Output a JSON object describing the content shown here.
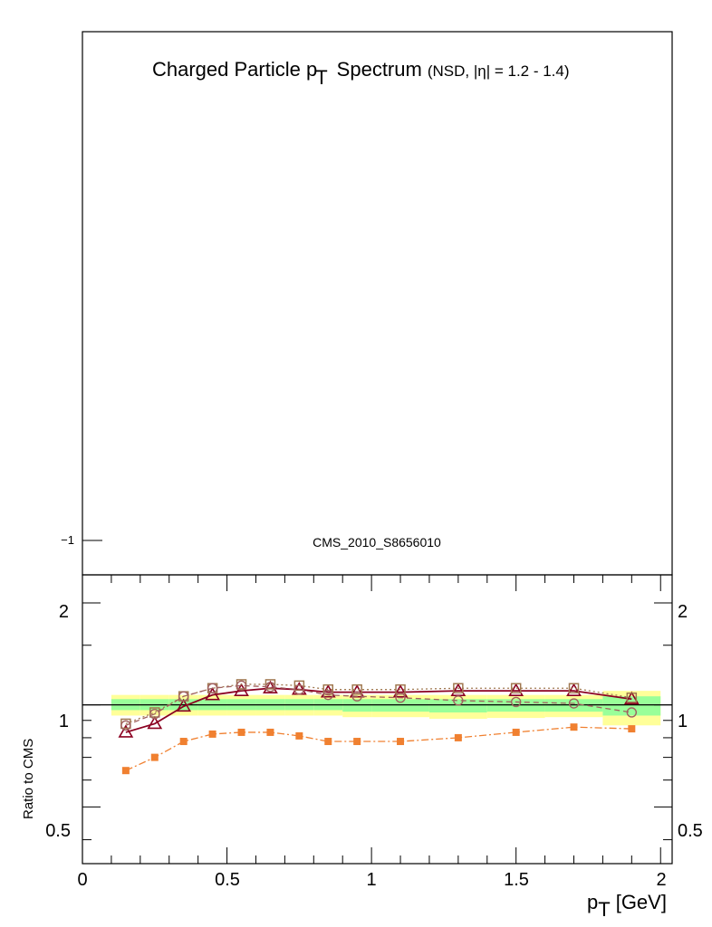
{
  "chart_data": [
    {
      "type": "line",
      "panel": "main",
      "title": "Charged Particle p",
      "title_sub": "T",
      "title_word": "Spectrum",
      "title_extra": "(NSD, |η| = 1.2 - 1.4)",
      "annotation": "CMS_2010_S8656010",
      "ytick_labels": [
        "−1"
      ],
      "series": []
    },
    {
      "type": "line",
      "panel": "ratio",
      "xlabel": "p",
      "xlabel_sub": "T",
      "xlabel_unit": "[GeV]",
      "ylabel": "Ratio to CMS",
      "xlim": [
        0,
        2.04
      ],
      "ylim": [
        0.34,
        2.42
      ],
      "reference_line": 1,
      "xtick_labels": [
        "0",
        "0.5",
        "1",
        "1.5",
        "2"
      ],
      "ytick_labels": [
        "2",
        "1",
        "0.5"
      ],
      "bands": {
        "bin_edges": [
          0.1,
          0.2,
          0.3,
          0.4,
          0.5,
          0.6,
          0.7,
          0.8,
          0.9,
          1.0,
          1.2,
          1.4,
          1.6,
          1.8,
          2.0
        ],
        "outer": [
          [
            0.93,
            1.07
          ],
          [
            0.93,
            1.07
          ],
          [
            0.93,
            1.07
          ],
          [
            0.93,
            1.07
          ],
          [
            0.93,
            1.07
          ],
          [
            0.93,
            1.07
          ],
          [
            0.93,
            1.07
          ],
          [
            0.93,
            1.07
          ],
          [
            0.92,
            1.07
          ],
          [
            0.92,
            1.07
          ],
          [
            0.91,
            1.07
          ],
          [
            0.915,
            1.07
          ],
          [
            0.92,
            1.07
          ],
          [
            0.87,
            1.1
          ]
        ],
        "inner": [
          [
            0.965,
            1.04
          ],
          [
            0.965,
            1.04
          ],
          [
            0.965,
            1.04
          ],
          [
            0.965,
            1.04
          ],
          [
            0.965,
            1.04
          ],
          [
            0.965,
            1.04
          ],
          [
            0.965,
            1.04
          ],
          [
            0.965,
            1.04
          ],
          [
            0.955,
            1.04
          ],
          [
            0.955,
            1.04
          ],
          [
            0.95,
            1.04
          ],
          [
            0.955,
            1.04
          ],
          [
            0.955,
            1.04
          ],
          [
            0.93,
            1.06
          ]
        ],
        "outer_color": "#ffff99",
        "inner_color": "#99ff99"
      },
      "x": [
        0.15,
        0.25,
        0.35,
        0.45,
        0.55,
        0.65,
        0.75,
        0.85,
        0.95,
        1.1,
        1.3,
        1.5,
        1.7,
        1.9
      ],
      "series": [
        {
          "color": "#8b0021",
          "marker": "triangle-open",
          "dash": "solid",
          "values": [
            0.83,
            0.88,
            0.99,
            1.07,
            1.1,
            1.12,
            1.11,
            1.09,
            1.09,
            1.09,
            1.1,
            1.1,
            1.1,
            1.04
          ]
        },
        {
          "color": "#a07850",
          "marker": "square-open",
          "dash": "dotted",
          "values": [
            0.88,
            0.95,
            1.06,
            1.12,
            1.15,
            1.15,
            1.14,
            1.11,
            1.11,
            1.11,
            1.12,
            1.12,
            1.12,
            1.05
          ]
        },
        {
          "color": "#a06060",
          "marker": "circle-open",
          "dash": "dashed",
          "values": [
            0.87,
            0.94,
            1.06,
            1.12,
            1.14,
            1.13,
            1.11,
            1.07,
            1.06,
            1.05,
            1.03,
            1.02,
            1.01,
            0.95
          ]
        },
        {
          "color": "#f08030",
          "marker": "square-filled",
          "dash": "dashdot",
          "values": [
            0.64,
            0.7,
            0.78,
            0.82,
            0.83,
            0.83,
            0.81,
            0.78,
            0.78,
            0.78,
            0.8,
            0.83,
            0.86,
            0.85
          ]
        }
      ]
    }
  ]
}
